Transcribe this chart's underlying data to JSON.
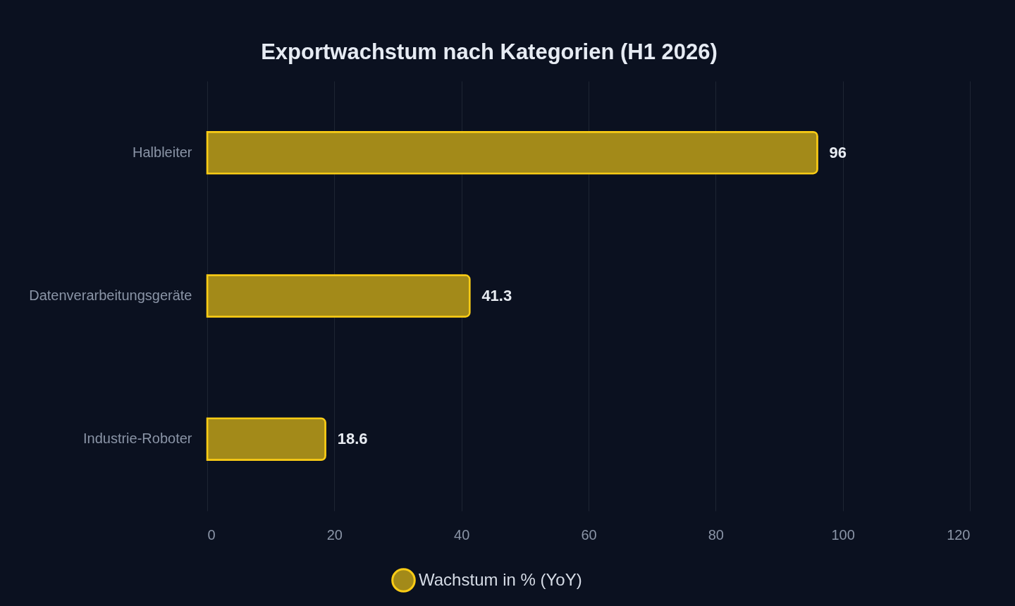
{
  "chart_data": {
    "type": "bar",
    "orientation": "horizontal",
    "title": "Exportwachstum nach Kategorien (H1 2026)",
    "categories": [
      "Halbleiter",
      "Datenverarbeitungsgeräte",
      "Industrie-Roboter"
    ],
    "series": [
      {
        "name": "Wachstum in % (YoY)",
        "color": "#a38a19",
        "values": [
          96,
          41.3,
          18.6
        ]
      }
    ],
    "xlim": [
      0,
      120
    ],
    "xticks": [
      0,
      20,
      40,
      60,
      80,
      100,
      120
    ],
    "grid": "x",
    "legend": "bottom",
    "data_labels": true
  }
}
